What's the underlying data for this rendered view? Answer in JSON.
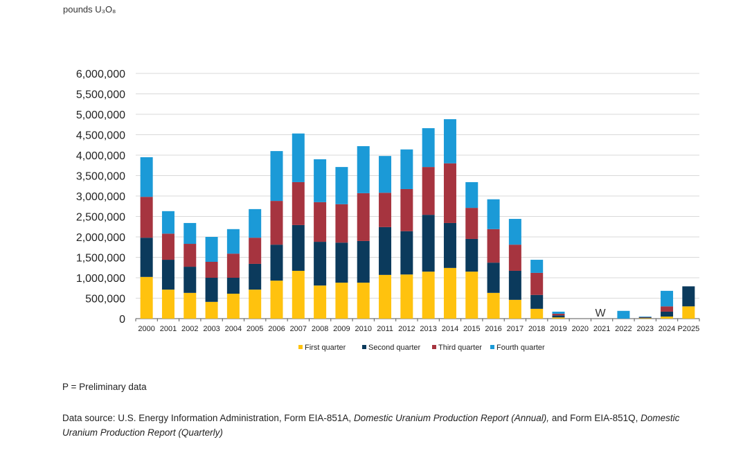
{
  "chart_data": {
    "type": "bar",
    "stacked": true,
    "unit_label": "pounds U₃O₈",
    "ylim": [
      0,
      6000000
    ],
    "yticks": [
      0,
      500000,
      1000000,
      1500000,
      2000000,
      2500000,
      3000000,
      3500000,
      4000000,
      4500000,
      5000000,
      5500000,
      6000000
    ],
    "ytick_labels": [
      "0",
      "500,000",
      "1,000,000",
      "1,500,000",
      "2,000,000",
      "2,500,000",
      "3,000,000",
      "3,500,000",
      "4,000,000",
      "4,500,000",
      "5,000,000",
      "5,500,000",
      "6,000,000"
    ],
    "grid": true,
    "legend_position": "bottom",
    "categories": [
      "2000",
      "2001",
      "2002",
      "2003",
      "2004",
      "2005",
      "2006",
      "2007",
      "2008",
      "2009",
      "2010",
      "2011",
      "2012",
      "2013",
      "2014",
      "2015",
      "2016",
      "2017",
      "2018",
      "2019",
      "2020",
      "2021",
      "2022",
      "2023",
      "2024",
      "P2025"
    ],
    "series": [
      {
        "name": "First quarter",
        "color": "#FFC20E",
        "values": [
          1020000,
          710000,
          630000,
          410000,
          610000,
          710000,
          930000,
          1170000,
          810000,
          880000,
          880000,
          1070000,
          1080000,
          1150000,
          1240000,
          1150000,
          630000,
          460000,
          240000,
          30000,
          0,
          0,
          0,
          10000,
          50000,
          300000
        ]
      },
      {
        "name": "Second quarter",
        "color": "#0B3A5C",
        "values": [
          960000,
          730000,
          640000,
          590000,
          390000,
          630000,
          880000,
          1120000,
          1070000,
          980000,
          1020000,
          1170000,
          1060000,
          1390000,
          1100000,
          800000,
          740000,
          710000,
          340000,
          50000,
          0,
          0,
          0,
          20000,
          120000,
          490000
        ]
      },
      {
        "name": "Third quarter",
        "color": "#A6343F",
        "values": [
          1000000,
          640000,
          560000,
          390000,
          590000,
          640000,
          1070000,
          1050000,
          970000,
          940000,
          1170000,
          840000,
          1030000,
          1170000,
          1460000,
          760000,
          820000,
          640000,
          540000,
          40000,
          0,
          0,
          0,
          10000,
          130000,
          0
        ]
      },
      {
        "name": "Fourth quarter",
        "color": "#1B9AD7",
        "values": [
          970000,
          550000,
          510000,
          610000,
          600000,
          700000,
          1220000,
          1190000,
          1050000,
          910000,
          1150000,
          900000,
          970000,
          950000,
          1080000,
          630000,
          730000,
          630000,
          320000,
          50000,
          0,
          0,
          190000,
          10000,
          380000,
          0
        ]
      }
    ],
    "annotations": [
      {
        "category": "2021",
        "text": "W"
      }
    ]
  },
  "footnote": "P = Preliminary data",
  "source": {
    "prefix": "Data source: U.S. Energy Information Administration, Form EIA-851A, ",
    "title1": "Domestic Uranium Production Report (Annual),",
    "middle": " and Form EIA-851Q, ",
    "title2": "Domestic Uranium Production Report (Quarterly)"
  }
}
